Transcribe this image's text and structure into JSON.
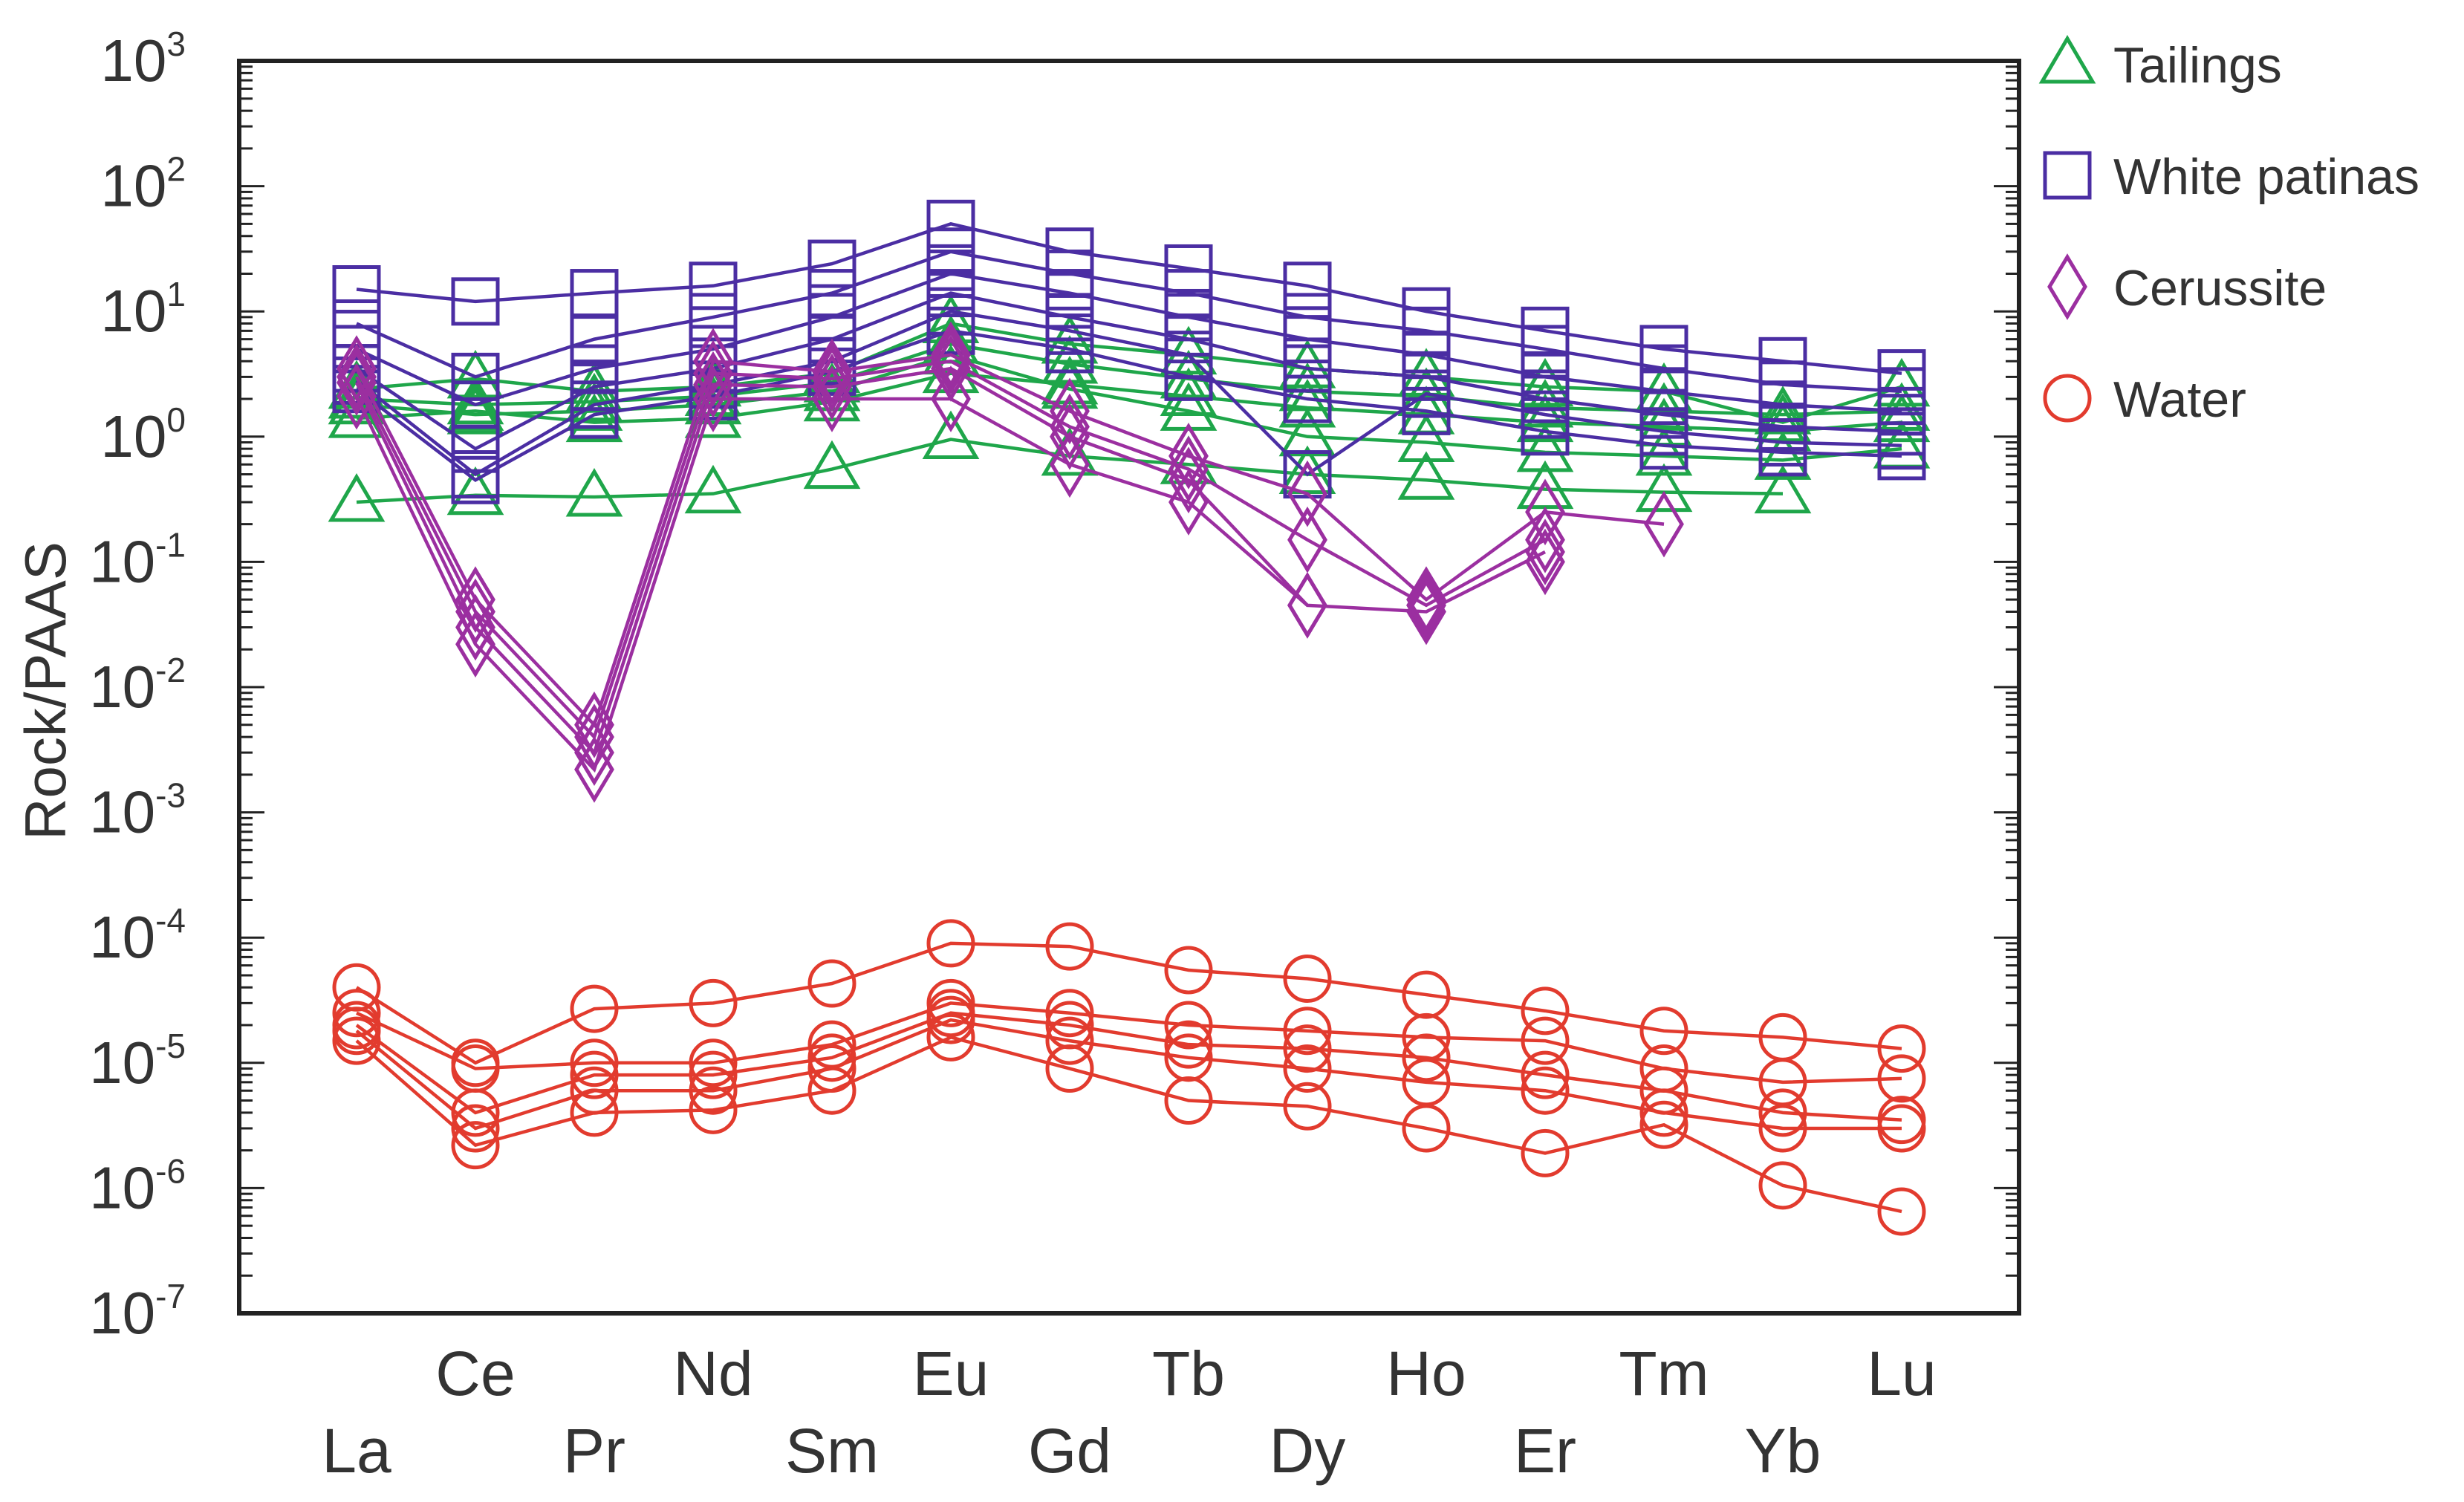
{
  "chart_data": {
    "type": "line",
    "title": "",
    "xlabel": "",
    "ylabel": "Rock/PAAS",
    "yscale": "log",
    "ylim_exponents": [
      -7,
      3
    ],
    "y_ticks": [
      {
        "base": "10",
        "exp": "3"
      },
      {
        "base": "10",
        "exp": "2"
      },
      {
        "base": "10",
        "exp": "1"
      },
      {
        "base": "10",
        "exp": "0"
      },
      {
        "base": "10",
        "exp": "-1"
      },
      {
        "base": "10",
        "exp": "-2"
      },
      {
        "base": "10",
        "exp": "-3"
      },
      {
        "base": "10",
        "exp": "-4"
      },
      {
        "base": "10",
        "exp": "-5"
      },
      {
        "base": "10",
        "exp": "-6"
      },
      {
        "base": "10",
        "exp": "-7"
      }
    ],
    "categories": [
      "La",
      "Ce",
      "Pr",
      "Nd",
      "Sm",
      "Eu",
      "Gd",
      "Tb",
      "Dy",
      "Ho",
      "Er",
      "Tm",
      "Yb",
      "Lu"
    ],
    "legend": [
      {
        "name": "Tailings",
        "marker": "triangle",
        "color": "#1fa64a"
      },
      {
        "name": "White patinas",
        "marker": "square",
        "color": "#4b2ea3"
      },
      {
        "name": "Cerussite",
        "marker": "diamond",
        "color": "#9b2fa0"
      },
      {
        "name": "Water",
        "marker": "circle",
        "color": "#e23b2e"
      }
    ],
    "legend_position": "right",
    "groups": [
      {
        "name": "Tailings",
        "marker": "triangle",
        "color": "#1fa64a",
        "series": [
          [
            0.3,
            0.34,
            0.33,
            0.35,
            0.55,
            0.95,
            0.7,
            0.6,
            0.5,
            0.45,
            0.38,
            0.36,
            0.35,
            null
          ],
          [
            1.4,
            1.6,
            1.3,
            1.4,
            1.9,
            3.2,
            2.6,
            2.1,
            1.7,
            1.5,
            1.3,
            1.2,
            1.1,
            1.3
          ],
          [
            2.0,
            1.8,
            1.9,
            2.1,
            2.7,
            5.5,
            3.8,
            2.9,
            2.3,
            2.1,
            1.7,
            1.6,
            1.5,
            1.6
          ],
          [
            2.4,
            2.9,
            2.3,
            2.5,
            3.2,
            8.0,
            5.5,
            4.5,
            3.5,
            3.0,
            2.5,
            2.3,
            1.3,
            2.5
          ],
          [
            1.8,
            1.5,
            1.6,
            1.8,
            2.3,
            4.5,
            2.4,
            1.6,
            1.0,
            0.9,
            0.75,
            0.7,
            0.65,
            0.8
          ]
        ]
      },
      {
        "name": "White patinas",
        "marker": "square",
        "color": "#4b2ea3",
        "series": [
          [
            15,
            12,
            14,
            16,
            24,
            50,
            30,
            22,
            16,
            10,
            7,
            5,
            4,
            3.2
          ],
          [
            8,
            3,
            6,
            9,
            14,
            30,
            20,
            14,
            9,
            7,
            5,
            3.5,
            2.6,
            2.3
          ],
          [
            5,
            1.8,
            3.5,
            5,
            9,
            20,
            14,
            9,
            6,
            4.5,
            3,
            2.3,
            1.8,
            1.6
          ],
          [
            3.5,
            0.8,
            2.5,
            3.5,
            6,
            14,
            9,
            6,
            3.5,
            3,
            2,
            1.5,
            1.2,
            1.1
          ],
          [
            2.8,
            0.5,
            1.8,
            2.6,
            4,
            10,
            7,
            4.5,
            0.5,
            2.2,
            1.5,
            1.1,
            0.9,
            0.85
          ],
          [
            2.4,
            0.45,
            1.5,
            2.1,
            3.3,
            7,
            5,
            3,
            2,
            1.6,
            1.1,
            0.85,
            0.75,
            0.7
          ]
        ]
      },
      {
        "name": "Cerussite",
        "marker": "diamond",
        "color": "#9b2fa0",
        "series": [
          [
            3.5,
            0.05,
            0.005,
            4.0,
            3.3,
            4.5,
            1.6,
            0.7,
            0.35,
            0.05,
            0.25,
            0.2,
            null,
            null
          ],
          [
            3.0,
            0.04,
            0.004,
            3.2,
            2.9,
            4.0,
            1.2,
            0.55,
            0.15,
            0.045,
            0.15,
            null,
            null,
            null
          ],
          [
            2.7,
            0.03,
            0.003,
            2.6,
            2.5,
            3.5,
            1.0,
            0.45,
            0.045,
            0.04,
            0.12,
            null,
            null,
            null
          ],
          [
            2.1,
            0.022,
            0.0022,
            2.0,
            2.0,
            2.0,
            0.6,
            0.3,
            0.045,
            null,
            0.1,
            null,
            null,
            null
          ]
        ]
      },
      {
        "name": "Water",
        "marker": "circle",
        "color": "#e23b2e",
        "series": [
          [
            4e-05,
            1e-05,
            2.7e-05,
            3e-05,
            4.3e-05,
            9e-05,
            8.5e-05,
            5.5e-05,
            4.7e-05,
            3.5e-05,
            2.6e-05,
            1.8e-05,
            1.6e-05,
            1.3e-05
          ],
          [
            2.5e-05,
            9e-06,
            1e-05,
            1e-05,
            1.4e-05,
            3e-05,
            2.5e-05,
            2e-05,
            1.8e-05,
            1.6e-05,
            1.5e-05,
            9e-06,
            7e-06,
            7.5e-06
          ],
          [
            2e-05,
            4e-06,
            8e-06,
            8e-06,
            1.1e-05,
            2.5e-05,
            2e-05,
            1.4e-05,
            1.3e-05,
            1.1e-05,
            8e-06,
            6e-06,
            4e-06,
            3.5e-06
          ],
          [
            1.8e-05,
            3e-06,
            6e-06,
            6e-06,
            9e-06,
            2.2e-05,
            1.5e-05,
            1.1e-05,
            9e-06,
            7e-06,
            6e-06,
            4e-06,
            3e-06,
            3e-06
          ],
          [
            1.5e-05,
            2.2e-06,
            4e-06,
            4.2e-06,
            6e-06,
            1.6e-05,
            9e-06,
            5e-06,
            4.5e-06,
            3e-06,
            1.9e-06,
            3.2e-06,
            1.05e-06,
            6.5e-07
          ]
        ]
      }
    ]
  }
}
